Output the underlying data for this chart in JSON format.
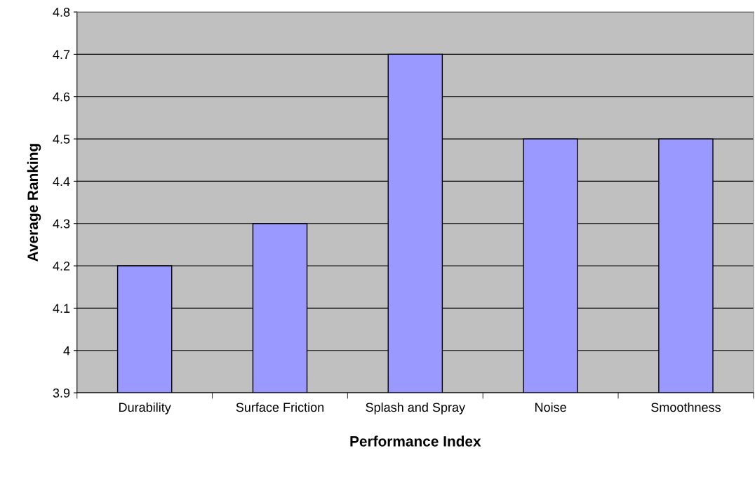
{
  "chart_data": {
    "type": "bar",
    "xlabel": "Performance Index",
    "ylabel": "Average Ranking",
    "categories": [
      "Durability",
      "Surface Friction",
      "Splash and Spray",
      "Noise",
      "Smoothness"
    ],
    "values": [
      4.2,
      4.3,
      4.7,
      4.5,
      4.5
    ],
    "color": "#9999ff",
    "ylim": [
      3.9,
      4.8
    ],
    "yticks": [
      3.9,
      4,
      4.1,
      4.2,
      4.3,
      4.4,
      4.5,
      4.6,
      4.7,
      4.8
    ],
    "grid": "y",
    "legend": false
  }
}
